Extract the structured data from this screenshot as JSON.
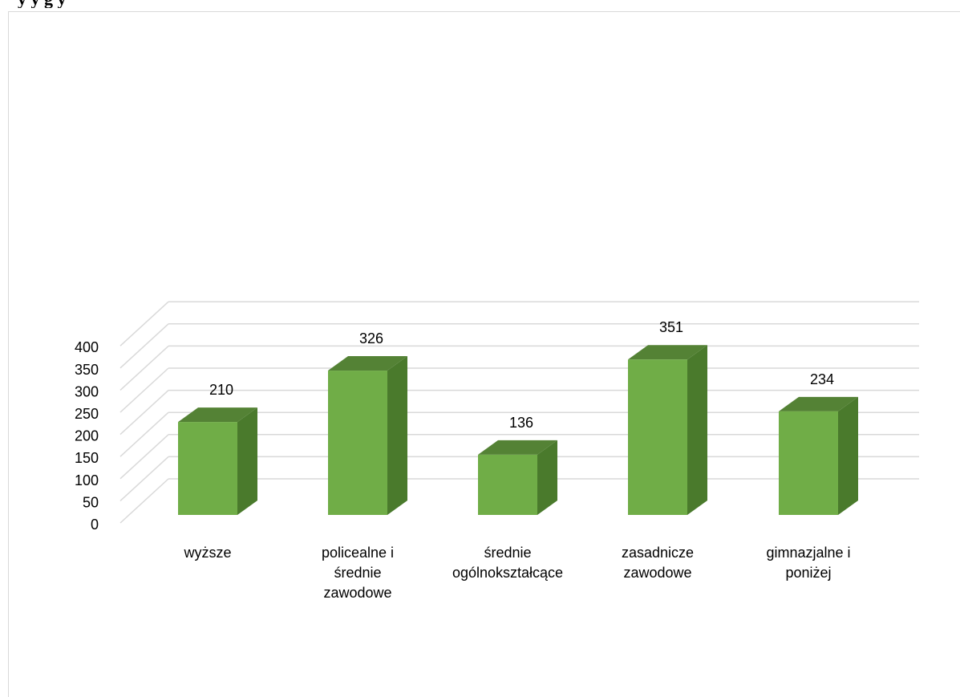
{
  "header_fragment": "y                                                          y  g  y",
  "chart_data": {
    "type": "bar",
    "style": "3d-column",
    "categories": [
      [
        "wyższe"
      ],
      [
        "policealne i",
        "średnie",
        "zawodowe"
      ],
      [
        "średnie",
        "ogólnokształcące"
      ],
      [
        "zasadnicze",
        "zawodowe"
      ],
      [
        "gimnazjalne i",
        "poniżej"
      ]
    ],
    "values": [
      210,
      326,
      136,
      351,
      234
    ],
    "data_labels": [
      "210",
      "326",
      "136",
      "351",
      "234"
    ],
    "ylim": [
      0,
      400
    ],
    "yticks": [
      "0",
      "50",
      "100",
      "150",
      "200",
      "250",
      "300",
      "350",
      "400"
    ],
    "grid": true,
    "colors": {
      "front": "#70ad47",
      "side": "#4a7a2c",
      "top": "#548235",
      "grid": "#d9d9d9"
    }
  }
}
